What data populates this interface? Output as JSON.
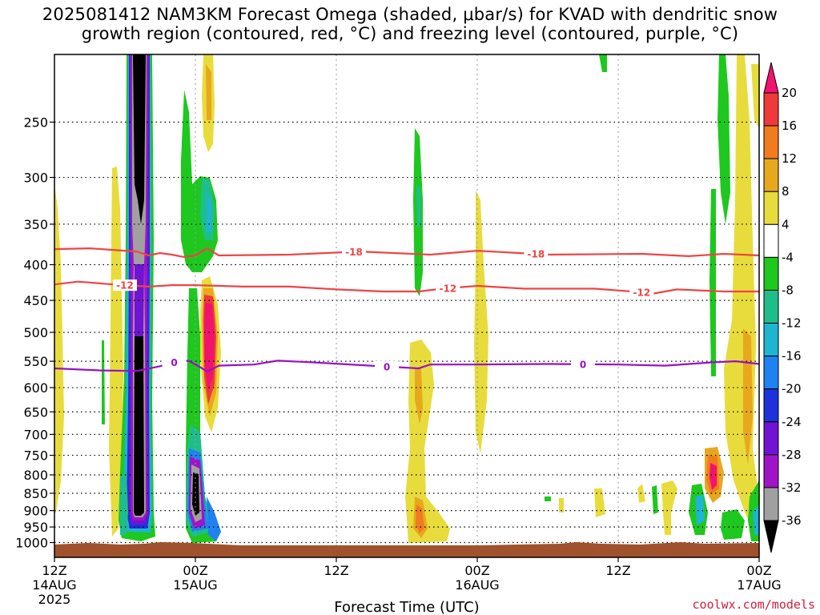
{
  "header": {
    "title_line1": "2025081412 NAM3KM Forecast Omega (shaded, μbar/s) for KVAD with dendritic snow",
    "title_line2": "growth region (contoured, red, °C) and freezing level (contoured, purple, °C)"
  },
  "credit": "coolwx.com/models",
  "chart_data": {
    "type": "heatmap",
    "xlabel": "Forecast Time (UTC)",
    "ylabel": "",
    "x_range_hours": [
      0,
      60
    ],
    "y_range_hPa": [
      1050,
      200
    ],
    "y_scale": "log",
    "grid": true,
    "x_ticks": [
      {
        "hour": 0,
        "label": "12Z",
        "sub1": "14AUG",
        "sub2": "2025"
      },
      {
        "hour": 12,
        "label": "00Z",
        "sub1": "15AUG",
        "sub2": ""
      },
      {
        "hour": 24,
        "label": "12Z",
        "sub1": "",
        "sub2": ""
      },
      {
        "hour": 36,
        "label": "00Z",
        "sub1": "16AUG",
        "sub2": ""
      },
      {
        "hour": 48,
        "label": "12Z",
        "sub1": "",
        "sub2": ""
      },
      {
        "hour": 60,
        "label": "00Z",
        "sub1": "17AUG",
        "sub2": ""
      }
    ],
    "y_ticks": [
      250,
      300,
      350,
      400,
      450,
      500,
      550,
      600,
      650,
      700,
      750,
      800,
      850,
      900,
      950,
      1000
    ],
    "colorbar": {
      "levels": [
        20,
        16,
        12,
        8,
        4,
        -4,
        -8,
        -12,
        -16,
        -20,
        -24,
        -28,
        -32,
        -36
      ],
      "colors_top_to_bottom": [
        "#f0146e",
        "#ee3a3a",
        "#f07c1e",
        "#e8a81e",
        "#e8dc3c",
        "#ffffff",
        "#1ec81e",
        "#1ebe8c",
        "#1eb4d2",
        "#1e82f0",
        "#1e32dc",
        "#6e14d2",
        "#a014c8",
        "#a0a0a0",
        "#000000"
      ]
    },
    "contours": [
      {
        "name": "-18",
        "color": "#ee4444",
        "points": [
          [
            0,
            380
          ],
          [
            3,
            379
          ],
          [
            7,
            383
          ],
          [
            8,
            388
          ],
          [
            9,
            385
          ],
          [
            10,
            387
          ],
          [
            11,
            390
          ],
          [
            12,
            388
          ],
          [
            13,
            379
          ],
          [
            14,
            388
          ],
          [
            20,
            387
          ],
          [
            26,
            383
          ],
          [
            32,
            387
          ],
          [
            36,
            382
          ],
          [
            42,
            387
          ],
          [
            50,
            386
          ],
          [
            54,
            389
          ],
          [
            57,
            386
          ],
          [
            60,
            388
          ]
        ],
        "labels_at_hour": [
          25.5,
          41
        ]
      },
      {
        "name": "-12",
        "color": "#ee4444",
        "points": [
          [
            0,
            427
          ],
          [
            2,
            423
          ],
          [
            5,
            427
          ],
          [
            8,
            430
          ],
          [
            10,
            428
          ],
          [
            12,
            428
          ],
          [
            16,
            430
          ],
          [
            20,
            430
          ],
          [
            24,
            434
          ],
          [
            28,
            437
          ],
          [
            31,
            437
          ],
          [
            33,
            433
          ],
          [
            36,
            429
          ],
          [
            40,
            433
          ],
          [
            46,
            433
          ],
          [
            50,
            438
          ],
          [
            51,
            440
          ],
          [
            53,
            434
          ],
          [
            57,
            437
          ],
          [
            60,
            437
          ]
        ],
        "labels_at_hour": [
          6,
          33.5,
          50
        ]
      },
      {
        "name": "0",
        "color": "#9a10c8",
        "points": [
          [
            0,
            563
          ],
          [
            4,
            567
          ],
          [
            7,
            568
          ],
          [
            9,
            559
          ],
          [
            10,
            553
          ],
          [
            11,
            548
          ],
          [
            11.5,
            550
          ],
          [
            12.5,
            562
          ],
          [
            13,
            569
          ],
          [
            14,
            558
          ],
          [
            17,
            556
          ],
          [
            19,
            549
          ],
          [
            22,
            552
          ],
          [
            26,
            557
          ],
          [
            31,
            563
          ],
          [
            32,
            556
          ],
          [
            36,
            556
          ],
          [
            42,
            555
          ],
          [
            48,
            556
          ],
          [
            52,
            558
          ],
          [
            56,
            552
          ],
          [
            58,
            550
          ],
          [
            60,
            555
          ]
        ],
        "labels_at_hour": [
          10.2,
          28.3,
          45
        ]
      }
    ]
  }
}
